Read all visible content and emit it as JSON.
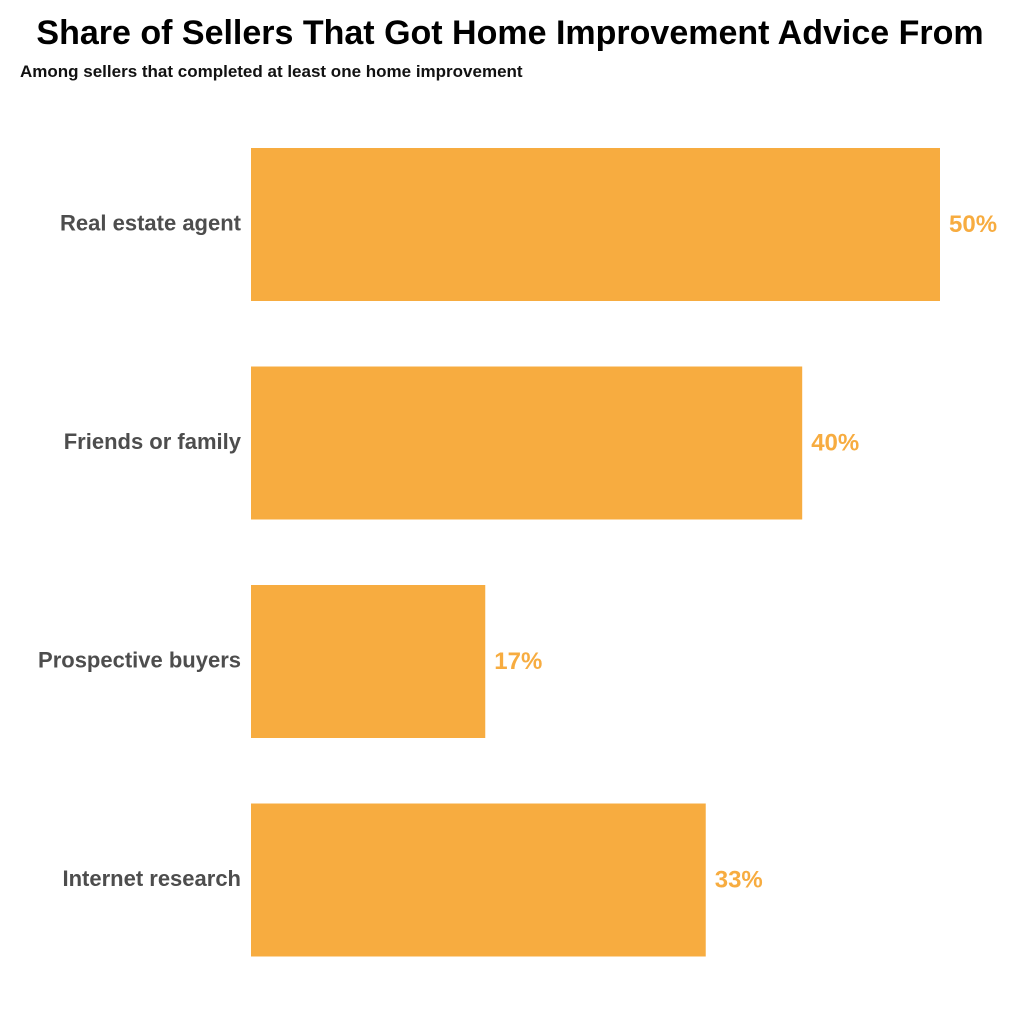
{
  "chart_data": {
    "type": "bar",
    "orientation": "horizontal",
    "title": "Share of Sellers That Got Home Improvement Advice From",
    "subtitle": "Among sellers that completed at least one home improvement",
    "categories": [
      "Real estate agent",
      "Friends or family",
      "Prospective buyers",
      "Internet research"
    ],
    "values": [
      50,
      40,
      17,
      33
    ],
    "value_labels": [
      "50%",
      "40%",
      "17%",
      "33%"
    ],
    "unit": "%",
    "xlim": [
      0,
      50
    ],
    "grid": false,
    "legend": "none"
  },
  "colors": {
    "bar": "#F7AC40",
    "value_label": "#F7AC40",
    "category_label": "#4D4D4D",
    "title": "#000000"
  }
}
